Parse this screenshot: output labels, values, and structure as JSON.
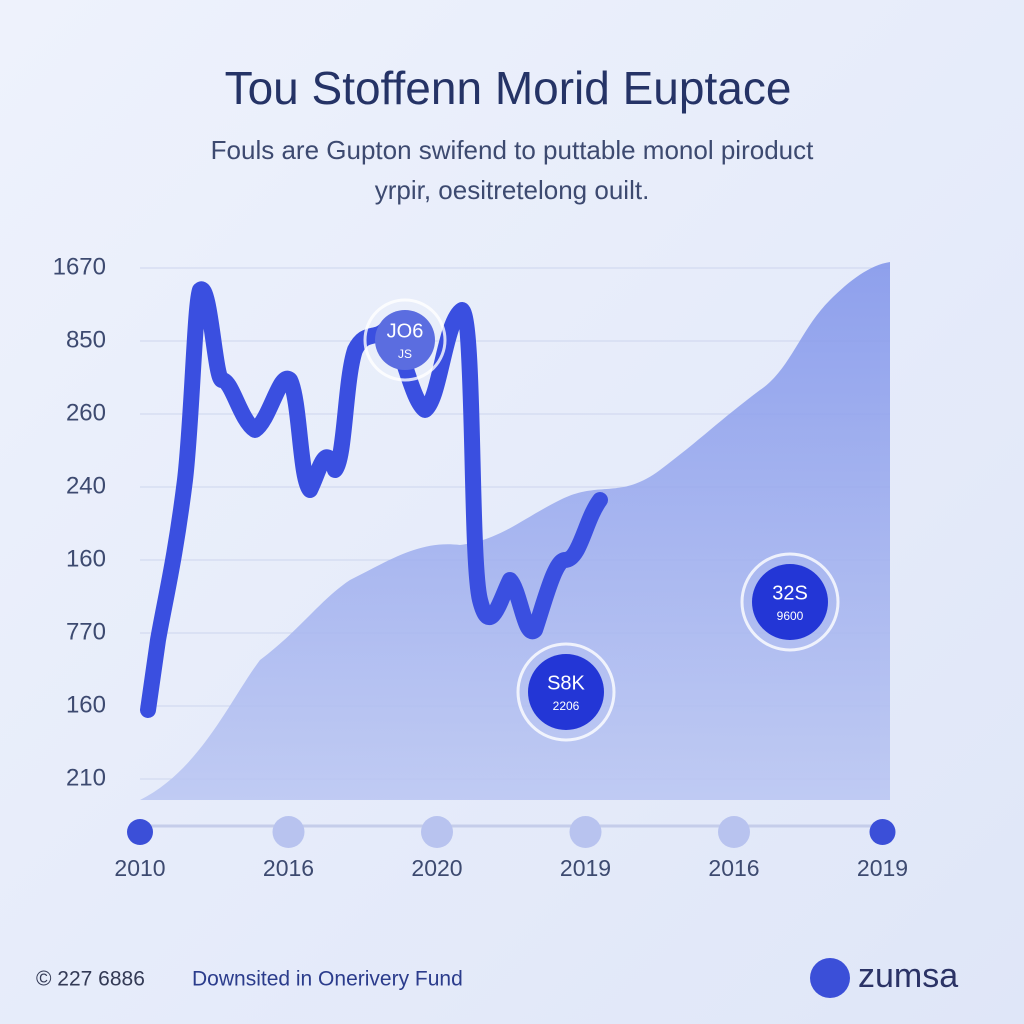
{
  "header": {
    "title": "Tou Stoffenn Morid Euptace",
    "subtitle": [
      "Fouls are Gupton swifend to puttable monol piroduct",
      "yrpir, oesitretelong ouilt."
    ]
  },
  "y_axis_labels": [
    1670,
    850,
    260,
    240,
    160,
    770,
    160,
    210
  ],
  "x_axis_labels": [
    2010,
    2016,
    2020,
    2019,
    2016,
    2019
  ],
  "callouts": [
    {
      "value": "JO6",
      "sub": "JS"
    },
    {
      "value": "S8K",
      "sub": "2206"
    },
    {
      "value": "32S",
      "sub": "9600"
    }
  ],
  "footer": {
    "copyright": "© 227 6886",
    "note": "Downsited in Onerivery Fund",
    "brand": "zumsa"
  }
}
